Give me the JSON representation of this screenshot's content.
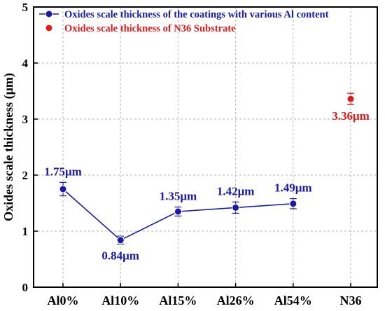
{
  "chart_data": {
    "type": "scatter",
    "title": "",
    "xlabel": "",
    "ylabel": "Oxides scale thickness (μm)",
    "ylim": [
      0,
      5
    ],
    "yticks": [
      "0",
      "1",
      "2",
      "3",
      "4",
      "5"
    ],
    "categories": [
      "Al0%",
      "Al10%",
      "Al15%",
      "Al26%",
      "Al54%",
      "N36"
    ],
    "grid": true,
    "legend_position": "top-left",
    "series": [
      {
        "name": "Oxides scale thickness of the coatings with various Al content",
        "color": "#1a1aa6",
        "style": "line-marker",
        "x": [
          "Al0%",
          "Al10%",
          "Al15%",
          "Al26%",
          "Al54%"
        ],
        "values": [
          1.75,
          0.84,
          1.35,
          1.42,
          1.49
        ],
        "errors": [
          0.12,
          0.07,
          0.08,
          0.1,
          0.09
        ],
        "labels": [
          "1.75μm",
          "0.84μm",
          "1.35μm",
          "1.42μm",
          "1.49μm"
        ]
      },
      {
        "name": "Oxides scale thickness of N36 Substrate",
        "color": "#e01b1b",
        "style": "marker",
        "x": [
          "N36"
        ],
        "values": [
          3.36
        ],
        "errors": [
          0.1
        ],
        "labels": [
          "3.36μm"
        ]
      }
    ]
  }
}
